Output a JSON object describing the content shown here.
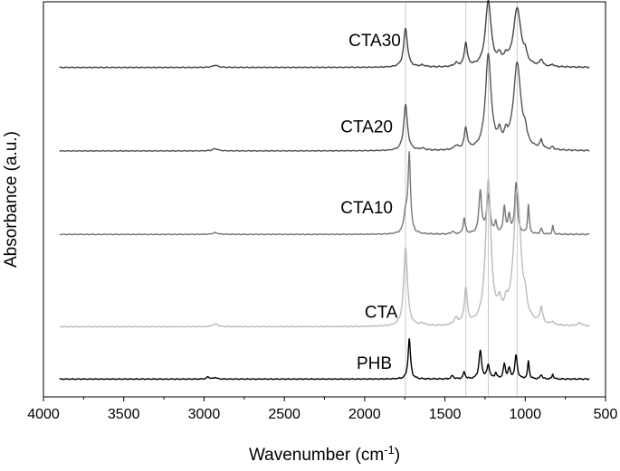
{
  "chart_data": {
    "type": "line",
    "title": "",
    "xlabel": "Wavenumber (cm⁻¹)",
    "xlabel_base": "Wavenumber (cm",
    "xlabel_sup": "-1",
    "xlabel_tail": ")",
    "ylabel": "Absorbance (a.u.)",
    "xlim": [
      4000,
      500
    ],
    "x_reversed": true,
    "y_ticks_shown": false,
    "grid": false,
    "legend": "none",
    "x_ticks": [
      4000,
      3500,
      3000,
      2500,
      2000,
      1500,
      1000,
      500
    ],
    "reference_lines_x": [
      1745,
      1370,
      1230,
      1050
    ],
    "series": [
      {
        "name": "CTA30",
        "color": "#444444",
        "baseline": 5.62,
        "peaks": [
          {
            "x": 2930,
            "h": 0.04,
            "w": 20
          },
          {
            "x": 1745,
            "h": 0.7,
            "w": 14
          },
          {
            "x": 1640,
            "h": 0.03,
            "w": 20
          },
          {
            "x": 1430,
            "h": 0.06,
            "w": 15
          },
          {
            "x": 1370,
            "h": 0.42,
            "w": 11
          },
          {
            "x": 1230,
            "h": 1.18,
            "w": 21
          },
          {
            "x": 1160,
            "h": 0.15,
            "w": 13
          },
          {
            "x": 1120,
            "h": 0.12,
            "w": 12
          },
          {
            "x": 1050,
            "h": 1.05,
            "w": 28
          },
          {
            "x": 1000,
            "h": 0.15,
            "w": 11
          },
          {
            "x": 900,
            "h": 0.12,
            "w": 10
          },
          {
            "x": 830,
            "h": 0.04,
            "w": 8
          }
        ]
      },
      {
        "name": "CTA20",
        "color": "#555555",
        "baseline": 4.12,
        "peaks": [
          {
            "x": 2930,
            "h": 0.04,
            "w": 20
          },
          {
            "x": 1745,
            "h": 0.82,
            "w": 14
          },
          {
            "x": 1640,
            "h": 0.03,
            "w": 20
          },
          {
            "x": 1430,
            "h": 0.07,
            "w": 15
          },
          {
            "x": 1370,
            "h": 0.38,
            "w": 11
          },
          {
            "x": 1230,
            "h": 1.7,
            "w": 21
          },
          {
            "x": 1160,
            "h": 0.22,
            "w": 13
          },
          {
            "x": 1120,
            "h": 0.18,
            "w": 12
          },
          {
            "x": 1050,
            "h": 1.55,
            "w": 28
          },
          {
            "x": 1000,
            "h": 0.2,
            "w": 11
          },
          {
            "x": 900,
            "h": 0.15,
            "w": 10
          },
          {
            "x": 830,
            "h": 0.05,
            "w": 8
          }
        ]
      },
      {
        "name": "CTA10",
        "color": "#777777",
        "baseline": 2.62,
        "peaks": [
          {
            "x": 2930,
            "h": 0.03,
            "w": 20
          },
          {
            "x": 1745,
            "h": 0.35,
            "w": 13
          },
          {
            "x": 1722,
            "h": 1.4,
            "w": 9
          },
          {
            "x": 1453,
            "h": 0.05,
            "w": 9
          },
          {
            "x": 1380,
            "h": 0.28,
            "w": 8
          },
          {
            "x": 1280,
            "h": 0.76,
            "w": 10
          },
          {
            "x": 1230,
            "h": 0.68,
            "w": 13
          },
          {
            "x": 1183,
            "h": 0.18,
            "w": 7
          },
          {
            "x": 1130,
            "h": 0.48,
            "w": 8
          },
          {
            "x": 1100,
            "h": 0.32,
            "w": 8
          },
          {
            "x": 1057,
            "h": 0.92,
            "w": 10
          },
          {
            "x": 980,
            "h": 0.52,
            "w": 6
          },
          {
            "x": 900,
            "h": 0.1,
            "w": 7
          },
          {
            "x": 828,
            "h": 0.15,
            "w": 5
          }
        ]
      },
      {
        "name": "CTA",
        "color": "#bbbbbb",
        "baseline": 0.96,
        "peaks": [
          {
            "x": 2930,
            "h": 0.05,
            "w": 20
          },
          {
            "x": 1745,
            "h": 1.42,
            "w": 14
          },
          {
            "x": 1640,
            "h": 0.04,
            "w": 20
          },
          {
            "x": 1430,
            "h": 0.12,
            "w": 15
          },
          {
            "x": 1370,
            "h": 0.64,
            "w": 11
          },
          {
            "x": 1230,
            "h": 2.6,
            "w": 20
          },
          {
            "x": 1160,
            "h": 0.28,
            "w": 13
          },
          {
            "x": 1120,
            "h": 0.22,
            "w": 12
          },
          {
            "x": 1050,
            "h": 2.43,
            "w": 27
          },
          {
            "x": 1000,
            "h": 0.22,
            "w": 11
          },
          {
            "x": 900,
            "h": 0.28,
            "w": 10
          },
          {
            "x": 830,
            "h": 0.06,
            "w": 8
          },
          {
            "x": 660,
            "h": 0.06,
            "w": 15
          }
        ]
      },
      {
        "name": "PHB",
        "color": "#000000",
        "baseline": 0.02,
        "peaks": [
          {
            "x": 2975,
            "h": 0.04,
            "w": 10
          },
          {
            "x": 2930,
            "h": 0.03,
            "w": 10
          },
          {
            "x": 1722,
            "h": 0.72,
            "w": 9
          },
          {
            "x": 1453,
            "h": 0.06,
            "w": 9
          },
          {
            "x": 1380,
            "h": 0.12,
            "w": 8
          },
          {
            "x": 1280,
            "h": 0.5,
            "w": 10
          },
          {
            "x": 1230,
            "h": 0.24,
            "w": 10
          },
          {
            "x": 1183,
            "h": 0.1,
            "w": 7
          },
          {
            "x": 1130,
            "h": 0.26,
            "w": 8
          },
          {
            "x": 1100,
            "h": 0.18,
            "w": 8
          },
          {
            "x": 1057,
            "h": 0.42,
            "w": 9
          },
          {
            "x": 980,
            "h": 0.32,
            "w": 6
          },
          {
            "x": 900,
            "h": 0.08,
            "w": 7
          },
          {
            "x": 828,
            "h": 0.09,
            "w": 5
          }
        ]
      }
    ],
    "series_labels": [
      {
        "text": "CTA30",
        "x": 2100,
        "y": 6.0
      },
      {
        "text": "CTA20",
        "x": 2150,
        "y": 4.45
      },
      {
        "text": "CTA10",
        "x": 2150,
        "y": 3.0
      },
      {
        "text": "CTA",
        "x": 2000,
        "y": 1.12
      },
      {
        "text": "PHB",
        "x": 2050,
        "y": 0.2
      }
    ],
    "ylim": [
      -0.3,
      6.8
    ]
  }
}
